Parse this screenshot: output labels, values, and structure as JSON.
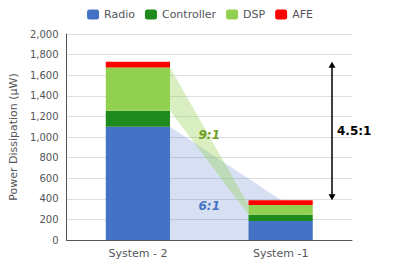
{
  "chart_data": {
    "type": "bar",
    "stacked": true,
    "categories": [
      "System - 2",
      "System -1"
    ],
    "series": [
      {
        "name": "Radio",
        "color": "#4472C4",
        "values": [
          1100,
          185
        ]
      },
      {
        "name": "Controller",
        "color": "#1E8B1E",
        "values": [
          155,
          60
        ]
      },
      {
        "name": "DSP",
        "color": "#92D050",
        "values": [
          420,
          95
        ]
      },
      {
        "name": "AFE",
        "color": "#FF0000",
        "values": [
          55,
          45
        ]
      }
    ],
    "ylabel": "Power Dissipation (μW)",
    "ylim": [
      0,
      2000
    ],
    "yticks": [
      0,
      200,
      400,
      600,
      800,
      1000,
      1200,
      1400,
      1600,
      1800,
      2000
    ],
    "grid": true,
    "legend": "top",
    "annotations": [
      {
        "text": "6:1",
        "color": "#4472C4"
      },
      {
        "text": "9:1",
        "color": "#70A020"
      },
      {
        "text": "4.5:1"
      }
    ]
  }
}
